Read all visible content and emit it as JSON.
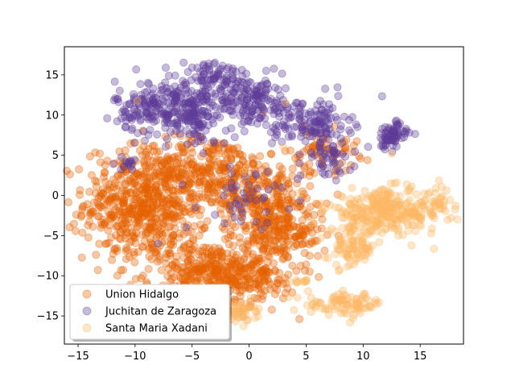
{
  "chart_data": {
    "type": "scatter",
    "title": "",
    "xlabel": "",
    "ylabel": "",
    "xlim": [
      -16.2,
      18.8
    ],
    "ylim": [
      -18.5,
      18.5
    ],
    "xticks": [
      -15,
      -10,
      -5,
      0,
      5,
      10,
      15
    ],
    "yticks": [
      -15,
      -10,
      -5,
      0,
      5,
      10,
      15
    ],
    "grid": false,
    "legend_placement": "lower-left",
    "series": [
      {
        "name": "Union Hidalgo",
        "color": "#e66101",
        "marker_alpha": 0.35,
        "clusters": [
          {
            "cx": -9,
            "cy": -1,
            "sx": 3.2,
            "sy": 4.2,
            "n": 620
          },
          {
            "cx": -4,
            "cy": -9.5,
            "sx": 3.0,
            "sy": 2.2,
            "n": 260
          },
          {
            "cx": -3,
            "cy": 3,
            "sx": 3.0,
            "sy": 2.5,
            "n": 230
          },
          {
            "cx": 1.5,
            "cy": -1,
            "sx": 2.3,
            "sy": 3.0,
            "n": 260
          },
          {
            "cx": 0,
            "cy": -10,
            "sx": 2.5,
            "sy": 2.2,
            "n": 170
          },
          {
            "cx": 3.5,
            "cy": -5,
            "sx": 2.0,
            "sy": 1.8,
            "n": 120
          },
          {
            "cx": 6.5,
            "cy": 5.5,
            "sx": 1.8,
            "sy": 1.5,
            "n": 70
          },
          {
            "cx": -6,
            "cy": -14,
            "sx": 2.0,
            "sy": 1.0,
            "n": 55
          }
        ],
        "points": [
          [
            5.0,
            -8.6
          ],
          [
            5.3,
            -7.5
          ],
          [
            6.8,
            -1.0
          ],
          [
            -1.2,
            -11.3
          ],
          [
            -5.3,
            -12.8
          ]
        ]
      },
      {
        "name": "Juchitan de Zaragoza",
        "color": "#5e3c99",
        "marker_alpha": 0.35,
        "clusters": [
          {
            "cx": -7.5,
            "cy": 11,
            "sx": 2.5,
            "sy": 2.0,
            "n": 220
          },
          {
            "cx": -3,
            "cy": 14.5,
            "sx": 2.5,
            "sy": 1.3,
            "n": 90
          },
          {
            "cx": 0.5,
            "cy": 11.5,
            "sx": 2.0,
            "sy": 1.8,
            "n": 150
          },
          {
            "cx": 5.5,
            "cy": 9,
            "sx": 2.0,
            "sy": 1.8,
            "n": 130
          },
          {
            "cx": -4.5,
            "cy": 9.5,
            "sx": 1.5,
            "sy": 2.0,
            "n": 90
          },
          {
            "cx": 12.5,
            "cy": 7.5,
            "sx": 0.8,
            "sy": 1.0,
            "n": 75
          },
          {
            "cx": 7,
            "cy": 4.5,
            "sx": 1.2,
            "sy": 1.5,
            "n": 45
          },
          {
            "cx": 0,
            "cy": 0,
            "sx": 2.5,
            "sy": 2.0,
            "n": 45
          },
          {
            "cx": -10.5,
            "cy": 4,
            "sx": 0.8,
            "sy": 0.5,
            "n": 14
          }
        ],
        "points": [
          [
            -4,
            16.3
          ],
          [
            -3,
            16.5
          ],
          [
            -5,
            15.9
          ],
          [
            1.5,
            15.5
          ],
          [
            4.5,
            2.5
          ],
          [
            -5.5,
            -4.0
          ],
          [
            -8.0,
            -6.0
          ]
        ]
      },
      {
        "name": "Santa Maria Xadani",
        "color": "#fdb863",
        "marker_alpha": 0.35,
        "clusters": [
          {
            "cx": 12,
            "cy": -2,
            "sx": 3.0,
            "sy": 1.6,
            "n": 300
          },
          {
            "cx": 9,
            "cy": -6.5,
            "sx": 1.2,
            "sy": 1.5,
            "n": 90
          },
          {
            "cx": 8.5,
            "cy": -13.5,
            "sx": 2.0,
            "sy": 0.8,
            "n": 90
          },
          {
            "cx": -1,
            "cy": -14.5,
            "sx": 1.5,
            "sy": 0.8,
            "n": 45
          },
          {
            "cx": 4.5,
            "cy": -10.7,
            "sx": 0.7,
            "sy": 0.2,
            "n": 10
          },
          {
            "cx": 16.5,
            "cy": -1,
            "sx": 0.6,
            "sy": 0.8,
            "n": 20
          }
        ],
        "points": [
          [
            3.2,
            11.5
          ],
          [
            -9.5,
            6.5
          ],
          [
            -9.8,
            11.8
          ],
          [
            -0.5,
            3.0
          ],
          [
            3.0,
            6.0
          ],
          [
            12.5,
            5.2
          ]
        ]
      }
    ]
  }
}
